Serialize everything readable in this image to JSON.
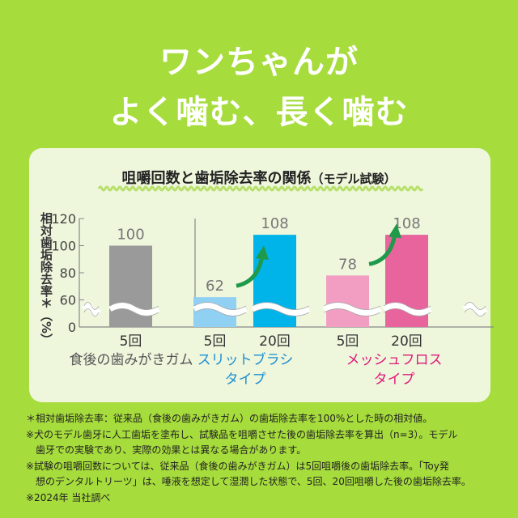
{
  "headline": {
    "line1": "ワンちゃんが",
    "line2": "よく噛む、長く噛む"
  },
  "chart_data": {
    "type": "bar",
    "title": "咀嚼回数と歯垢除去率の関係",
    "subtitle": "（モデル試験）",
    "ylabel": "相対歯垢除去率＊（%）",
    "yticks": [
      0,
      60,
      80,
      100,
      120
    ],
    "ylim": [
      0,
      120
    ],
    "axis_break": true,
    "groups": [
      {
        "name": "食後の歯みがきガム",
        "color": "#555555",
        "bars": [
          {
            "label": "5回",
            "value": 100,
            "color": "#9a9a9a"
          }
        ]
      },
      {
        "name": "スリットブラシ\nタイプ",
        "name_lines": [
          "スリットブラシ",
          "タイプ"
        ],
        "color": "#1e8fd0",
        "bars": [
          {
            "label": "5回",
            "value": 62,
            "color": "#8fd0f3"
          },
          {
            "label": "20回",
            "value": 108,
            "color": "#00b3e8"
          }
        ]
      },
      {
        "name": "メッシュフロス\nタイプ",
        "name_lines": [
          "メッシュフロス",
          "タイプ"
        ],
        "color": "#e0187a",
        "bars": [
          {
            "label": "5回",
            "value": 78,
            "color": "#f19ec2"
          },
          {
            "label": "20回",
            "value": 108,
            "color": "#e8649c"
          }
        ]
      }
    ],
    "arrow_color": "#1e9a4a"
  },
  "notes": [
    "＊相対歯垢除去率：従来品（食後の歯みがきガム）の歯垢除去率を100%とした時の相対値。",
    "※犬のモデル歯牙に人工歯垢を塗布し、試験品を咀嚼させた後の歯垢除去率を算出（n=3）。モデル",
    "歯牙での実験であり、実際の効果とは異なる場合があります。",
    "※試験の咀嚼回数については、従来品（食後の歯みがきガム）は5回咀嚼後の歯垢除去率。「Toy発",
    "想のデンタルトリーツ」は、唾液を想定して湿潤した状態で、5回、20回咀嚼した後の歯垢除去率。",
    "※2024年 当社調べ"
  ]
}
